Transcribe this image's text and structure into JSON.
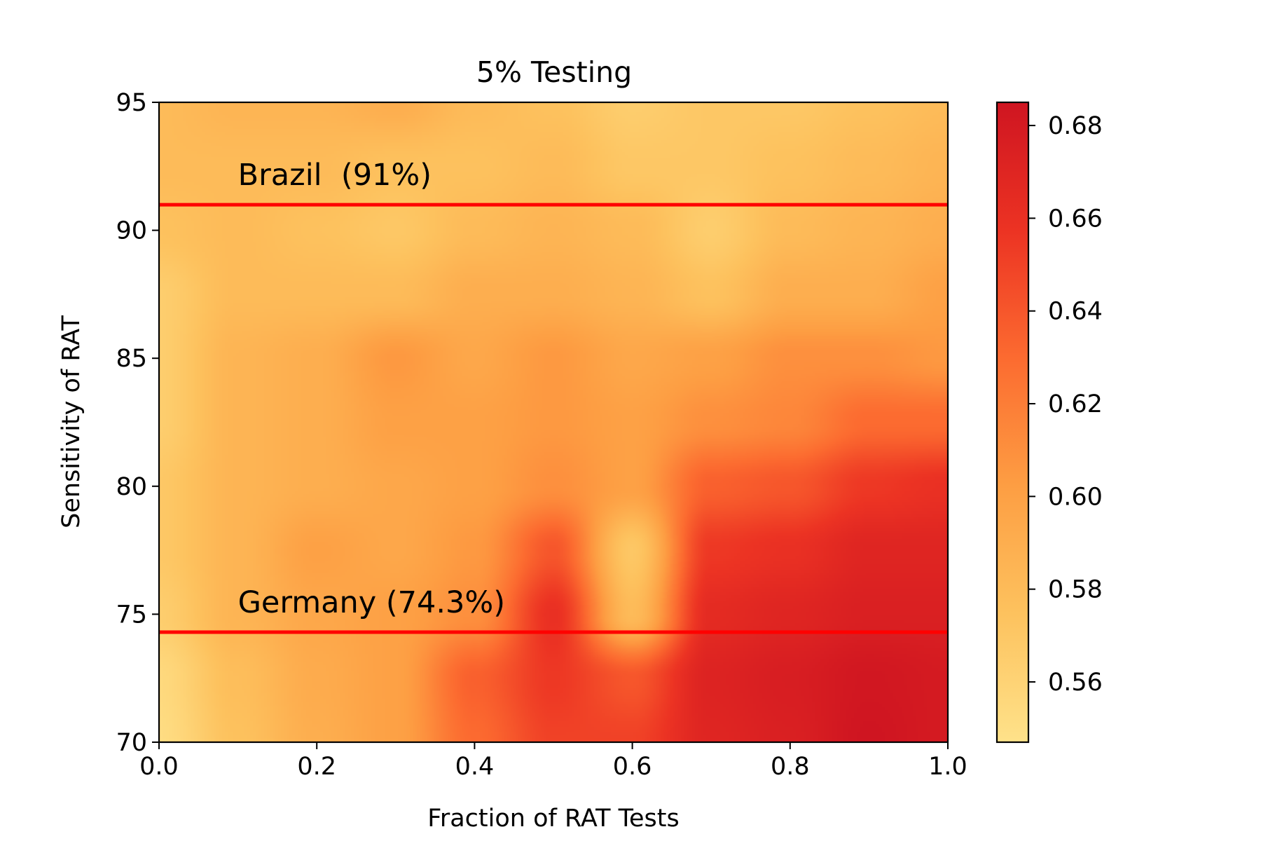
{
  "chart_data": {
    "type": "heatmap",
    "title": "5% Testing",
    "xlabel": "Fraction of RAT Tests",
    "ylabel": "Sensitivity of RAT",
    "xlim": [
      0.0,
      1.0
    ],
    "ylim": [
      70,
      95
    ],
    "x_ticks": [
      "0.0",
      "0.2",
      "0.4",
      "0.6",
      "0.8",
      "1.0"
    ],
    "x_tick_values": [
      0.0,
      0.2,
      0.4,
      0.6,
      0.8,
      1.0
    ],
    "y_ticks": [
      "70",
      "75",
      "80",
      "85",
      "90",
      "95"
    ],
    "y_tick_values": [
      70,
      75,
      80,
      85,
      90,
      95
    ],
    "colormap": "YlOrRd",
    "interpolation": "smooth",
    "colorbar": {
      "min": 0.547,
      "max": 0.685,
      "ticks": [
        "0.56",
        "0.58",
        "0.60",
        "0.62",
        "0.64",
        "0.66",
        "0.68"
      ],
      "tick_values": [
        0.56,
        0.58,
        0.6,
        0.62,
        0.64,
        0.66,
        0.68
      ],
      "colors": [
        "#fee28a",
        "#fdc25e",
        "#fd9e43",
        "#fc6b30",
        "#ec3323",
        "#cf1521"
      ]
    },
    "x": [
      0.0,
      0.1,
      0.2,
      0.3,
      0.4,
      0.5,
      0.6,
      0.7,
      0.8,
      0.9,
      1.0
    ],
    "y": [
      70,
      72.5,
      75,
      77.5,
      80,
      82.5,
      85,
      87.5,
      90,
      92.5,
      95
    ],
    "z": [
      [
        0.552,
        0.575,
        0.59,
        0.6,
        0.63,
        0.65,
        0.65,
        0.67,
        0.675,
        0.685,
        0.68
      ],
      [
        0.555,
        0.578,
        0.592,
        0.6,
        0.635,
        0.655,
        0.64,
        0.672,
        0.677,
        0.683,
        0.68
      ],
      [
        0.565,
        0.585,
        0.595,
        0.6,
        0.61,
        0.66,
        0.58,
        0.665,
        0.67,
        0.675,
        0.675
      ],
      [
        0.57,
        0.585,
        0.6,
        0.595,
        0.605,
        0.64,
        0.57,
        0.655,
        0.66,
        0.67,
        0.67
      ],
      [
        0.57,
        0.585,
        0.59,
        0.595,
        0.6,
        0.61,
        0.6,
        0.635,
        0.64,
        0.655,
        0.66
      ],
      [
        0.565,
        0.585,
        0.59,
        0.6,
        0.6,
        0.605,
        0.6,
        0.61,
        0.615,
        0.63,
        0.63
      ],
      [
        0.565,
        0.585,
        0.59,
        0.605,
        0.595,
        0.605,
        0.595,
        0.6,
        0.61,
        0.61,
        0.605
      ],
      [
        0.565,
        0.58,
        0.58,
        0.58,
        0.59,
        0.59,
        0.585,
        0.575,
        0.59,
        0.59,
        0.6
      ],
      [
        0.575,
        0.58,
        0.575,
        0.57,
        0.58,
        0.585,
        0.58,
        0.565,
        0.58,
        0.585,
        0.59
      ],
      [
        0.58,
        0.58,
        0.58,
        0.575,
        0.575,
        0.58,
        0.57,
        0.57,
        0.575,
        0.58,
        0.585
      ],
      [
        0.58,
        0.585,
        0.585,
        0.59,
        0.58,
        0.575,
        0.565,
        0.57,
        0.57,
        0.575,
        0.58
      ]
    ],
    "reference_lines": [
      {
        "label": "Brazil  (91%)",
        "y": 91.0,
        "color": "#ff0000"
      },
      {
        "label": "Germany (74.3%)",
        "y": 74.3,
        "color": "#ff0000"
      }
    ]
  }
}
